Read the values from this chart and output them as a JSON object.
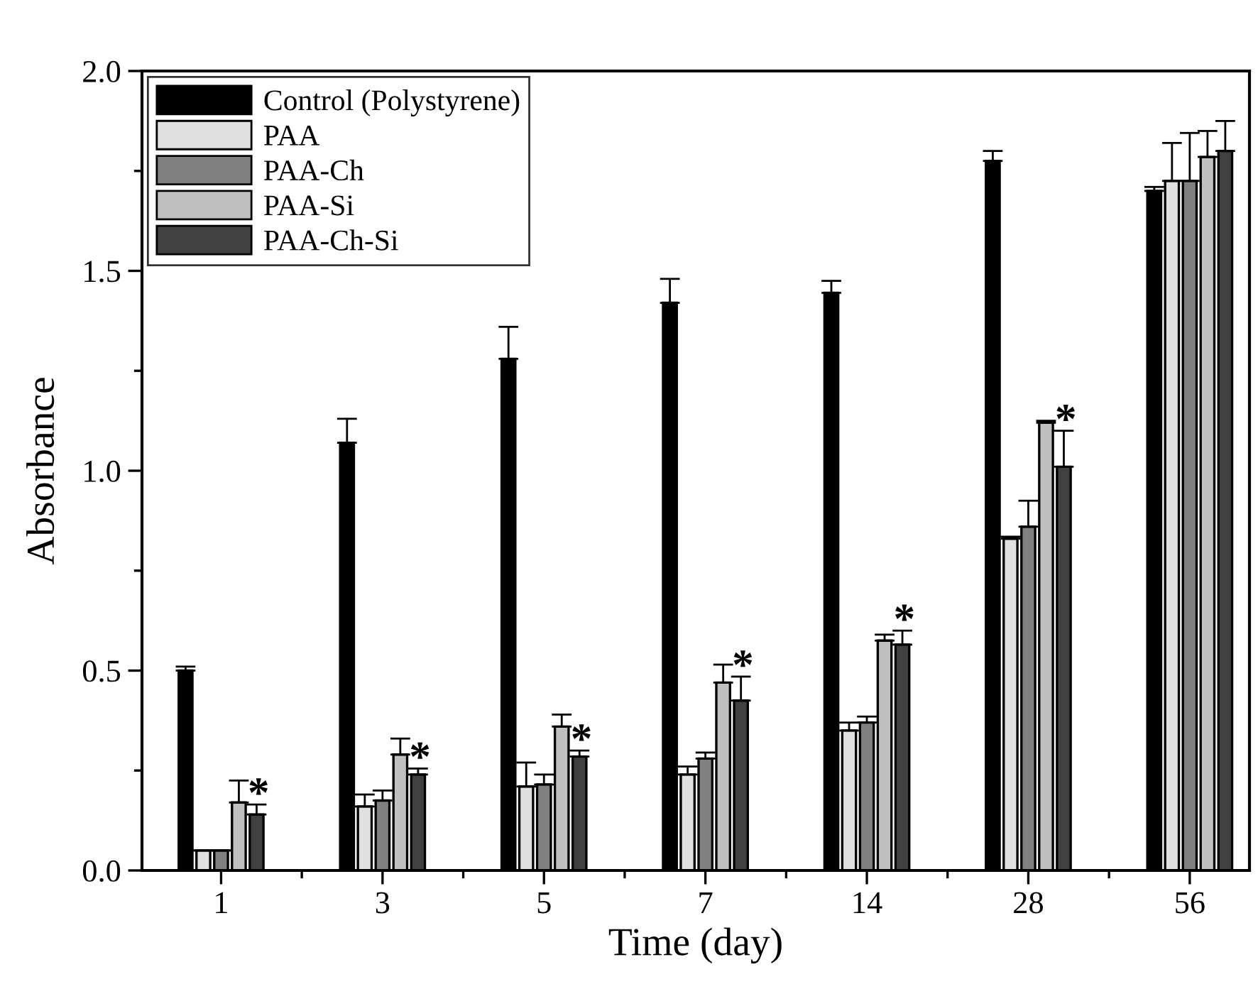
{
  "chart_data": {
    "type": "bar",
    "xlabel": "Time (day)",
    "ylabel": "Absorbance",
    "categories": [
      "1",
      "3",
      "5",
      "7",
      "14",
      "28",
      "56"
    ],
    "series": [
      {
        "name": "Control (Polystyrene)",
        "color": "#000000",
        "values": [
          0.5,
          1.07,
          1.28,
          1.42,
          1.445,
          1.775,
          1.7
        ],
        "errors": [
          [
            0.5,
            0.51
          ],
          [
            1.07,
            1.13
          ],
          [
            1.28,
            1.36
          ],
          [
            1.42,
            1.48
          ],
          [
            1.445,
            1.475
          ],
          [
            1.775,
            1.8
          ],
          [
            1.7,
            1.71
          ]
        ]
      },
      {
        "name": "PAA",
        "color": "#e0e0e0",
        "values": [
          0.05,
          0.16,
          0.21,
          0.24,
          0.35,
          0.83,
          1.725
        ],
        "errors": [
          [
            0.05,
            0.05
          ],
          [
            0.16,
            0.19
          ],
          [
            0.21,
            0.27
          ],
          [
            0.24,
            0.26
          ],
          [
            0.35,
            0.37
          ],
          [
            0.83,
            0.835
          ],
          [
            1.725,
            1.82
          ]
        ]
      },
      {
        "name": "PAA-Ch",
        "color": "#808080",
        "values": [
          0.05,
          0.175,
          0.215,
          0.28,
          0.37,
          0.86,
          1.725
        ],
        "errors": [
          [
            0.05,
            0.05
          ],
          [
            0.175,
            0.2
          ],
          [
            0.215,
            0.24
          ],
          [
            0.28,
            0.295
          ],
          [
            0.37,
            0.385
          ],
          [
            0.86,
            0.925
          ],
          [
            1.725,
            1.845
          ]
        ]
      },
      {
        "name": "PAA-Si",
        "color": "#c0c0c0",
        "values": [
          0.17,
          0.29,
          0.36,
          0.47,
          0.575,
          1.12,
          1.785
        ],
        "errors": [
          [
            0.17,
            0.225
          ],
          [
            0.29,
            0.33
          ],
          [
            0.36,
            0.39
          ],
          [
            0.47,
            0.515
          ],
          [
            0.575,
            0.59
          ],
          [
            1.12,
            1.125
          ],
          [
            1.785,
            1.85
          ]
        ]
      },
      {
        "name": "PAA-Ch-Si",
        "color": "#404040",
        "values": [
          0.14,
          0.24,
          0.285,
          0.425,
          0.565,
          1.01,
          1.8
        ],
        "errors": [
          [
            0.14,
            0.165
          ],
          [
            0.24,
            0.255
          ],
          [
            0.285,
            0.3
          ],
          [
            0.425,
            0.485
          ],
          [
            0.565,
            0.6
          ],
          [
            1.01,
            1.1
          ],
          [
            1.8,
            1.875
          ]
        ]
      }
    ],
    "annotations": [
      "*",
      "*",
      "*",
      "*",
      "*",
      "*"
    ],
    "ylim": [
      0,
      2.0
    ],
    "yticks": [
      {
        "value": 0,
        "label": "0.0"
      },
      {
        "value": 0.25,
        "label": null
      },
      {
        "value": 0.5,
        "label": "0.5"
      },
      {
        "value": 0.75,
        "label": null
      },
      {
        "value": 1.0,
        "label": "1.0"
      },
      {
        "value": 1.25,
        "label": null
      },
      {
        "value": 1.5,
        "label": "1.5"
      },
      {
        "value": 1.75,
        "label": null
      },
      {
        "value": 2.0,
        "label": "2.0"
      }
    ],
    "legend": "top left",
    "grid": false
  }
}
